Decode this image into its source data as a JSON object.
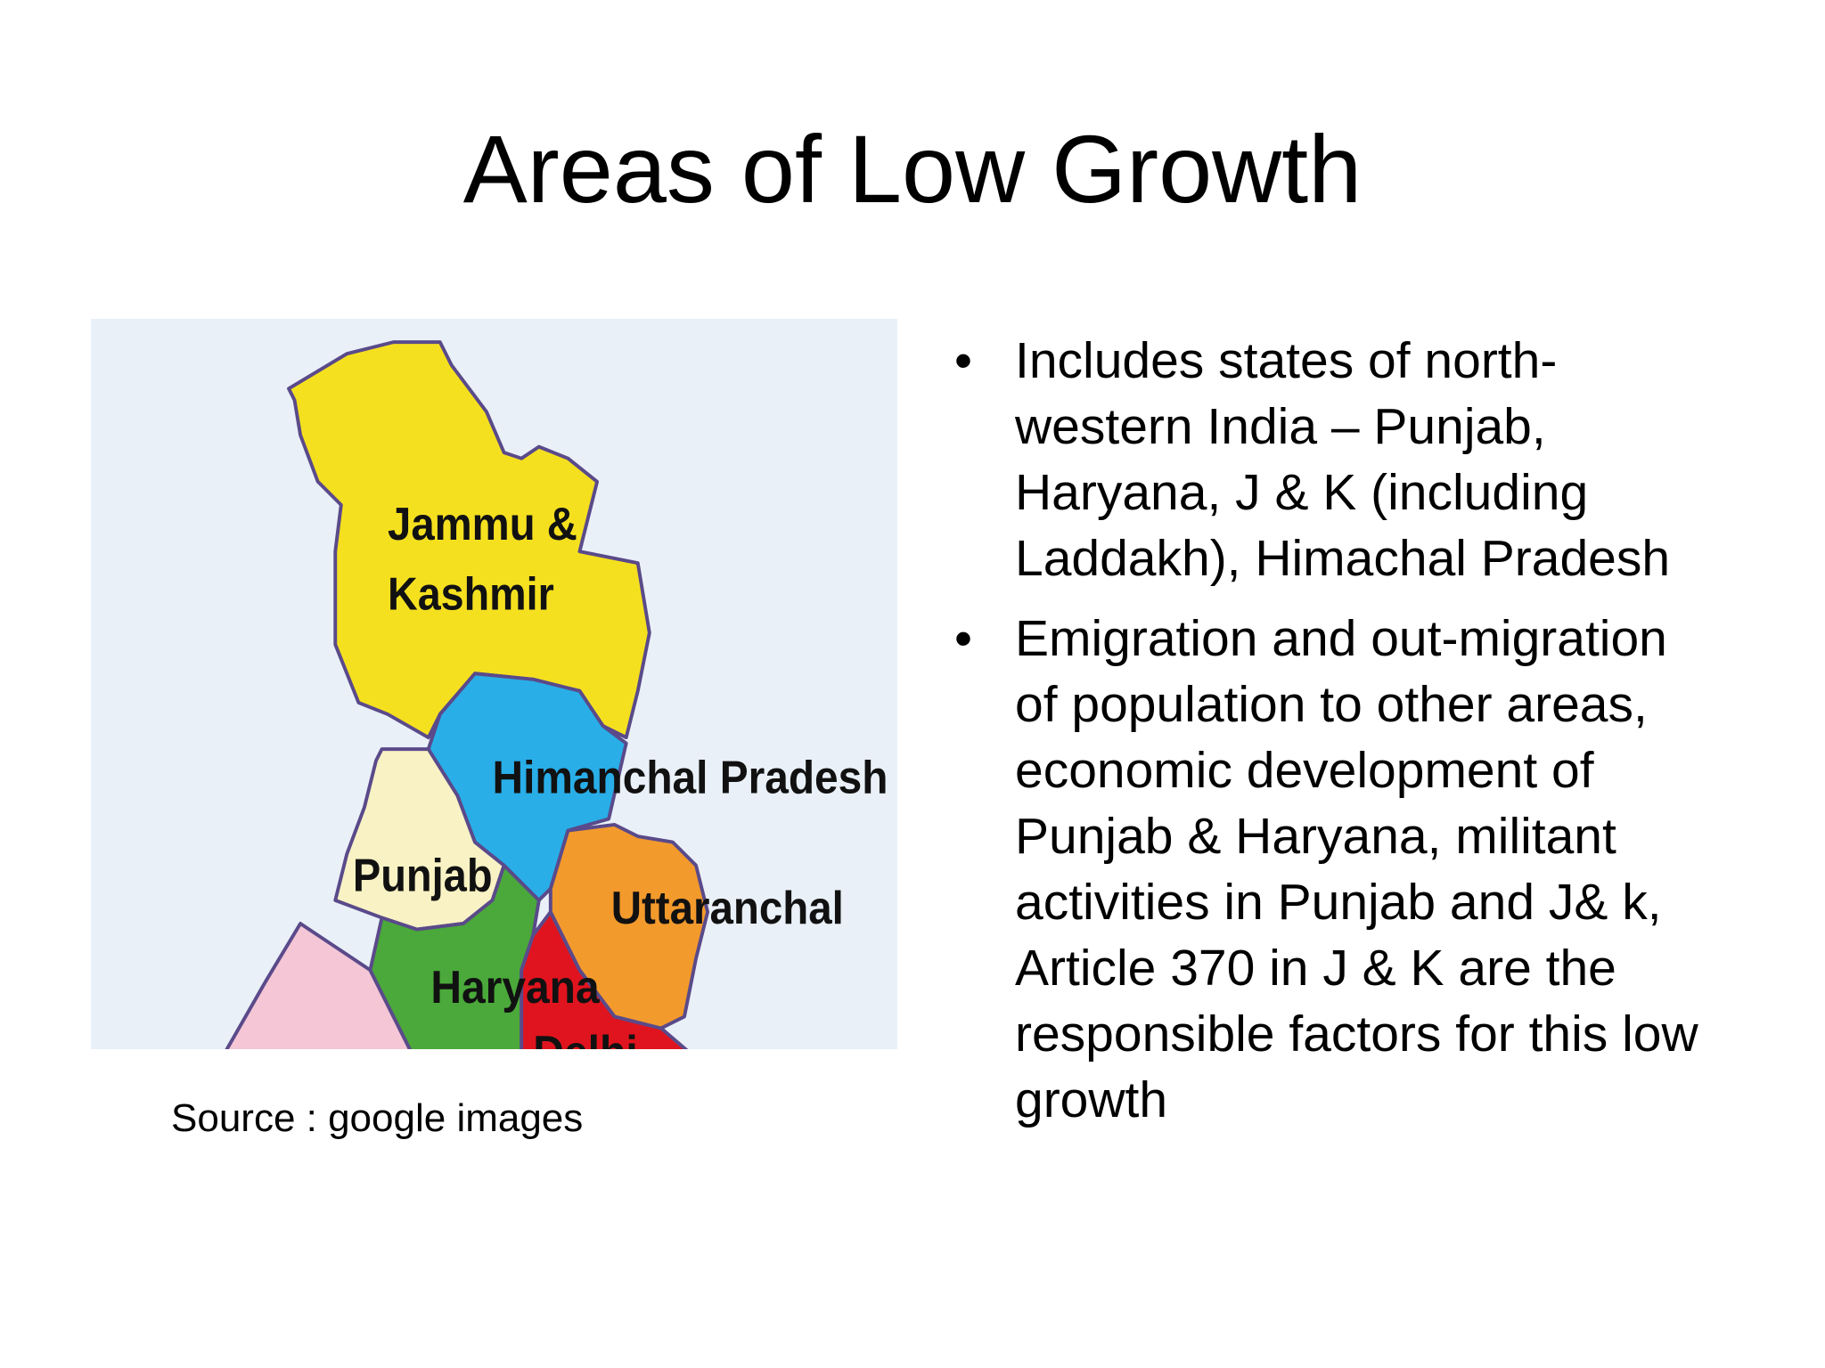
{
  "header": {
    "title": "Areas of Low Growth"
  },
  "map": {
    "labels": [
      "Jammu &",
      "Kashmir",
      "Himanchal Pradesh",
      "Punjab",
      "Uttaranchal",
      "Haryana",
      "Delhi"
    ],
    "caption": "Source : google images"
  },
  "bullets": [
    "Includes states of north-western India – Punjab, Haryana, J & K (including Laddakh), Himachal Pradesh",
    "Emigration and out-migration of population to other areas, economic development of Punjab & Haryana, militant activities in Punjab and J& k, Article 370 in J & K are the responsible factors for this low growth"
  ]
}
